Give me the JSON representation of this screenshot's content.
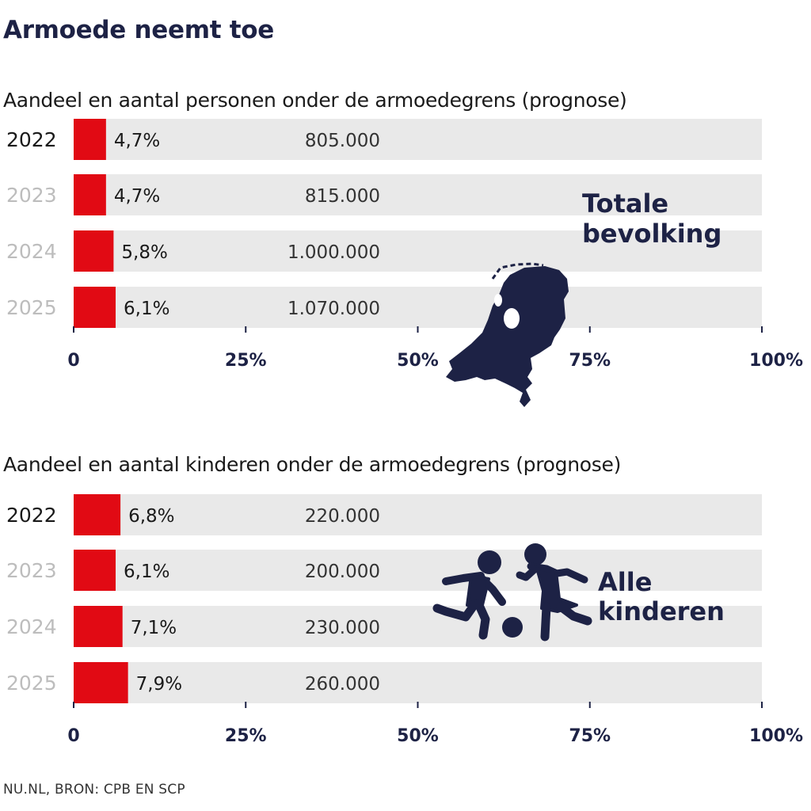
{
  "title": "Armoede neemt toe",
  "source": "NU.NL, BRON: CPB EN SCP",
  "colors": {
    "bar": "#e10a14",
    "track": "#e9e9e9",
    "navy": "#1d2245",
    "year_current": "#1a1a1a",
    "year_muted": "#bdbdbd"
  },
  "chart_data": [
    {
      "type": "bar",
      "orientation": "horizontal",
      "subtitle": "Aandeel en aantal personen onder de armoedegrens (prognose)",
      "categories": [
        "2022",
        "2023",
        "2024",
        "2025"
      ],
      "values": [
        4.7,
        4.7,
        5.8,
        6.1
      ],
      "value_labels": [
        "4,7%",
        "4,7%",
        "5,8%",
        "6,1%"
      ],
      "counts": [
        "805.000",
        "815.000",
        "1.000.000",
        "1.070.000"
      ],
      "xlim": [
        0,
        100
      ],
      "ticks": [
        0,
        25,
        50,
        75,
        100
      ],
      "tick_labels": [
        "0",
        "25%",
        "50%",
        "75%",
        "100%"
      ],
      "annotation_lines": [
        "Totale",
        "bevolking"
      ],
      "icon": "netherlands-map-icon"
    },
    {
      "type": "bar",
      "orientation": "horizontal",
      "subtitle": "Aandeel en aantal kinderen onder de armoedegrens (prognose)",
      "categories": [
        "2022",
        "2023",
        "2024",
        "2025"
      ],
      "values": [
        6.8,
        6.1,
        7.1,
        7.9
      ],
      "value_labels": [
        "6,8%",
        "6,1%",
        "7,1%",
        "7,9%"
      ],
      "counts": [
        "220.000",
        "200.000",
        "230.000",
        "260.000"
      ],
      "xlim": [
        0,
        100
      ],
      "ticks": [
        0,
        25,
        50,
        75,
        100
      ],
      "tick_labels": [
        "0",
        "25%",
        "50%",
        "75%",
        "100%"
      ],
      "annotation_lines": [
        "Alle",
        "kinderen"
      ],
      "icon": "children-playing-icon"
    }
  ]
}
